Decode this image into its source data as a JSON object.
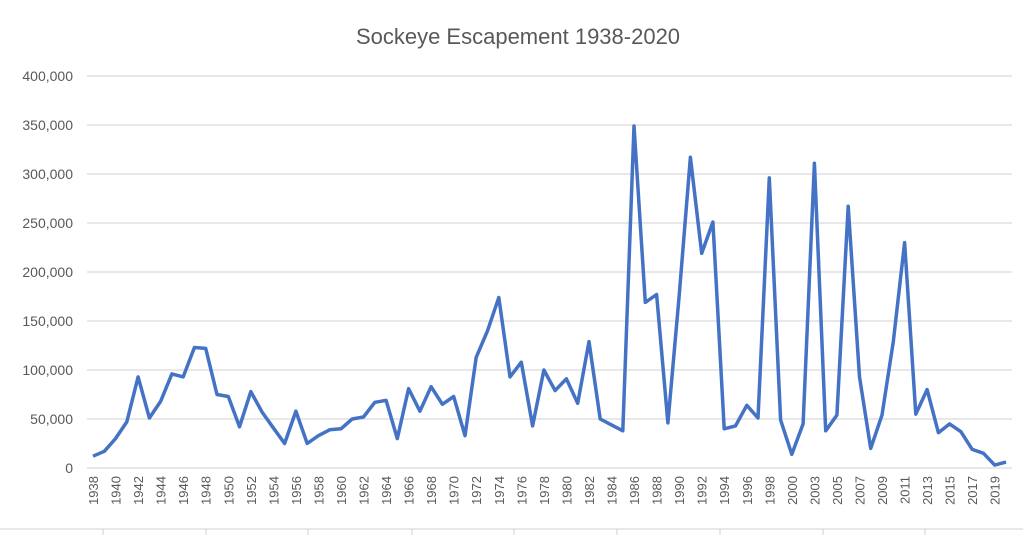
{
  "chart_data": {
    "type": "line",
    "title": "Sockeye Escapement 1938-2020",
    "xlabel": "",
    "ylabel": "",
    "ylim": [
      0,
      400000
    ],
    "yticks": [
      "0",
      "50,000",
      "100,000",
      "150,000",
      "200,000",
      "250,000",
      "300,000",
      "350,000",
      "400,000"
    ],
    "grid": true,
    "line_color": "#4472C4",
    "x": [
      "1938",
      "1939",
      "1940",
      "1941",
      "1942",
      "1943",
      "1944",
      "1945",
      "1946",
      "1947",
      "1948",
      "1949",
      "1950",
      "1951",
      "1952",
      "1953",
      "1954",
      "1955",
      "1956",
      "1957",
      "1958",
      "1959",
      "1960",
      "1961",
      "1962",
      "1963",
      "1964",
      "1965",
      "1966",
      "1967",
      "1968",
      "1969",
      "1970",
      "1971",
      "1972",
      "1973",
      "1974",
      "1975",
      "1976",
      "1977",
      "1978",
      "1979",
      "1980",
      "1981",
      "1982",
      "1983",
      "1984",
      "1985",
      "1986",
      "1987",
      "1988",
      "1989",
      "1990",
      "1991",
      "1992",
      "1993",
      "1994",
      "1995",
      "1996",
      "1997",
      "1998",
      "1999",
      "2000",
      "2001",
      "2003",
      "2004",
      "2005",
      "2006",
      "2007",
      "2008",
      "2009",
      "2010",
      "2011",
      "2012",
      "2013",
      "2014",
      "2015",
      "2016",
      "2017",
      "2018",
      "2019",
      "2020"
    ],
    "values": [
      12000,
      17000,
      30000,
      47000,
      93000,
      51000,
      68000,
      96000,
      93000,
      123000,
      122000,
      75000,
      73000,
      42000,
      78000,
      57000,
      41000,
      25000,
      58000,
      25000,
      33000,
      39000,
      40000,
      50000,
      52000,
      67000,
      69000,
      30000,
      81000,
      58000,
      83000,
      65000,
      73000,
      33000,
      113000,
      140000,
      174000,
      93000,
      108000,
      43000,
      100000,
      79000,
      91000,
      66000,
      129000,
      50000,
      44000,
      38000,
      349000,
      169000,
      177000,
      46000,
      175000,
      317000,
      219000,
      251000,
      40000,
      43000,
      64000,
      51000,
      296000,
      49000,
      14000,
      45000,
      311000,
      38000,
      54000,
      267000,
      93000,
      20000,
      54000,
      129000,
      230000,
      55000,
      80000,
      36000,
      45000,
      37000,
      19000,
      15000,
      3000,
      6000
    ]
  }
}
